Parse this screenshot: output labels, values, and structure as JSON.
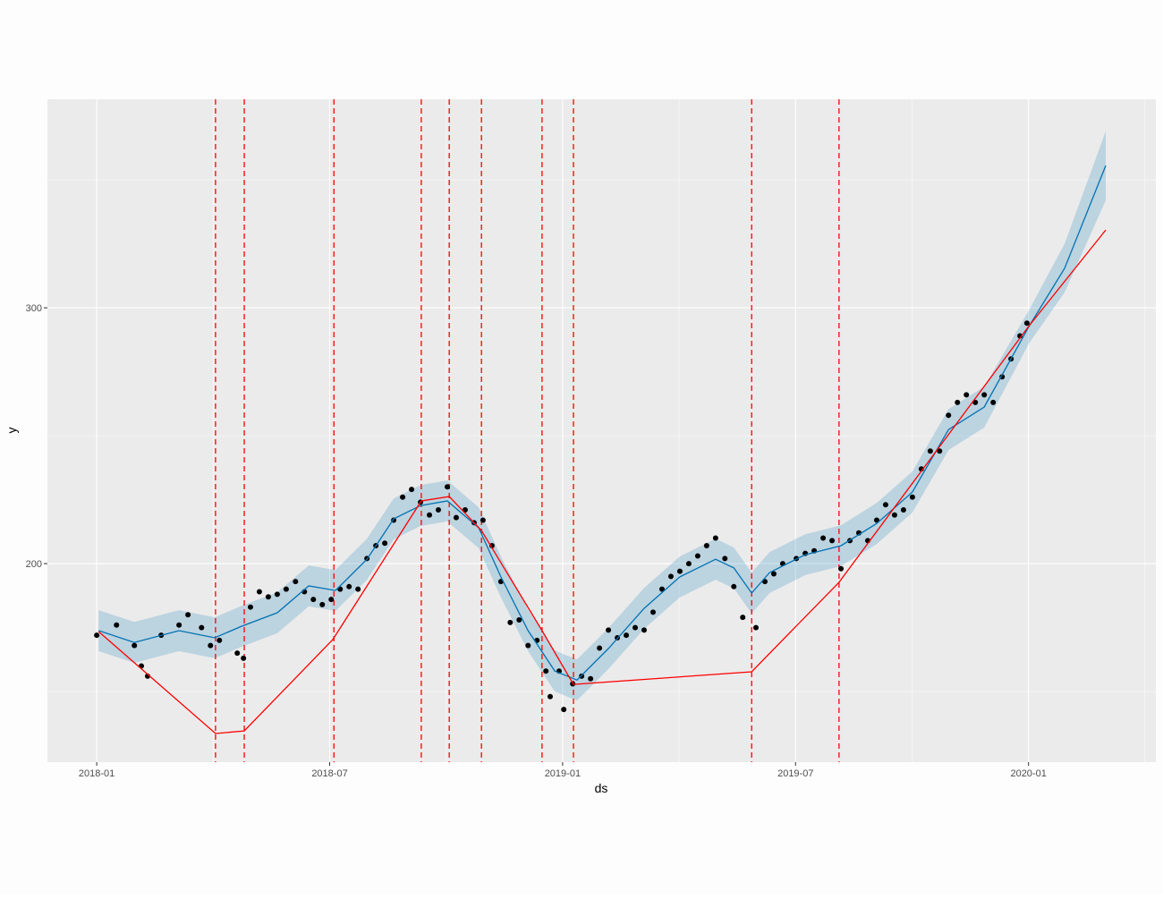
{
  "chart_data": {
    "type": "line",
    "x_label": "ds",
    "y_label": "y",
    "xlim": [
      -1.27,
      27.28
    ],
    "xticks": [
      {
        "value": 0,
        "label": "2018-01"
      },
      {
        "value": 6,
        "label": "2018-07"
      },
      {
        "value": 12,
        "label": "2019-01"
      },
      {
        "value": 18,
        "label": "2019-07"
      },
      {
        "value": 24,
        "label": "2020-01"
      }
    ],
    "x_minor_grid": [
      3,
      9,
      15,
      21,
      27
    ],
    "ylim": [
      122.4,
      381.5
    ],
    "yticks": [
      200,
      300
    ],
    "y_minor_grid": [
      150,
      250,
      350
    ],
    "grid": true,
    "forecast": {
      "color": "#0072B2",
      "x": [
        0.05,
        0.97,
        2.12,
        3.04,
        3.73,
        4.65,
        5.46,
        6.15,
        6.96,
        7.65,
        8.34,
        9.03,
        9.84,
        10.41,
        11.11,
        11.8,
        12.37,
        13.18,
        14.1,
        15.02,
        15.94,
        16.41,
        16.87,
        17.33,
        18.25,
        19.17,
        20.09,
        21.01,
        21.94,
        22.86,
        24.01,
        24.93,
        25.99
      ],
      "values": [
        173.8,
        169.2,
        173.8,
        171.0,
        175.5,
        180.8,
        191.3,
        189.5,
        201.7,
        217.5,
        222.7,
        224.5,
        214.0,
        194.8,
        173.8,
        158.0,
        154.5,
        166.8,
        182.5,
        194.8,
        201.7,
        198.3,
        188.5,
        196.5,
        203.5,
        207.0,
        215.7,
        228.0,
        252.4,
        261.2,
        292.7,
        315.4,
        355.6
      ],
      "lower": [
        165.8,
        161.2,
        165.8,
        163,
        167.5,
        172.8,
        183.3,
        181.5,
        193.7,
        209.5,
        214.7,
        216.5,
        206,
        186.8,
        165.8,
        150,
        146.5,
        158.8,
        174.5,
        186.8,
        193.7,
        190.3,
        180.5,
        188.5,
        195.5,
        199,
        207.7,
        220,
        244.4,
        253.2,
        286,
        306,
        342
      ],
      "upper": [
        181.8,
        177.2,
        181.8,
        179,
        183.5,
        188.8,
        199.3,
        197.5,
        209.7,
        225.5,
        230.7,
        232.5,
        222,
        202.8,
        181.8,
        166,
        162.5,
        174.8,
        190.5,
        202.8,
        209.7,
        206.3,
        196.5,
        204.5,
        211.5,
        215,
        223.7,
        236,
        260.4,
        269.2,
        299,
        325,
        369
      ]
    },
    "trend": {
      "color": "#FF0000",
      "x": [
        0.05,
        3.06,
        3.8,
        6.08,
        8.36,
        9.08,
        9.91,
        11.47,
        12.28,
        16.87,
        19.12,
        24.0,
        25.99
      ],
      "values": [
        173.4,
        133.6,
        134.6,
        170.3,
        224.5,
        226.2,
        212.9,
        173.8,
        152.8,
        157.7,
        192.7,
        292.7,
        330.4
      ]
    },
    "changepoints": {
      "color": "#FF0000",
      "x": [
        3.06,
        3.8,
        6.11,
        8.36,
        9.08,
        9.91,
        11.47,
        12.28,
        16.87,
        19.12
      ]
    },
    "observed": {
      "color": "#000000",
      "x": [
        0.0,
        0.51,
        0.97,
        1.15,
        1.31,
        1.66,
        2.12,
        2.35,
        2.7,
        2.93,
        3.16,
        3.62,
        3.78,
        3.96,
        4.19,
        4.42,
        4.65,
        4.88,
        5.12,
        5.35,
        5.58,
        5.81,
        6.04,
        6.27,
        6.5,
        6.73,
        6.96,
        7.19,
        7.42,
        7.65,
        7.88,
        8.11,
        8.34,
        8.57,
        8.8,
        9.03,
        9.26,
        9.49,
        9.72,
        9.95,
        10.18,
        10.41,
        10.65,
        10.88,
        11.11,
        11.34,
        11.57,
        11.68,
        11.91,
        12.03,
        12.26,
        12.49,
        12.72,
        12.95,
        13.18,
        13.41,
        13.64,
        13.87,
        14.1,
        14.33,
        14.56,
        14.79,
        15.02,
        15.25,
        15.48,
        15.71,
        15.94,
        16.18,
        16.41,
        16.64,
        16.98,
        17.21,
        17.44,
        17.67,
        18.02,
        18.25,
        18.48,
        18.71,
        18.94,
        19.17,
        19.4,
        19.63,
        19.86,
        20.09,
        20.32,
        20.55,
        20.78,
        21.01,
        21.24,
        21.47,
        21.71,
        21.94,
        22.17,
        22.4,
        22.63,
        22.86,
        23.09,
        23.32,
        23.55,
        23.78,
        23.96
      ],
      "values": [
        172,
        176,
        168,
        160,
        156,
        172,
        176,
        180,
        175,
        168,
        170,
        165,
        163,
        183,
        189,
        187,
        188,
        190,
        193,
        189,
        186,
        184,
        186,
        190,
        191,
        190,
        202,
        207,
        208,
        217,
        226,
        229,
        224,
        219,
        221,
        230,
        218,
        221,
        216,
        217,
        207,
        193,
        177,
        178,
        168,
        170,
        158,
        148,
        158,
        143,
        153,
        156,
        155,
        167,
        174,
        171,
        172,
        175,
        174,
        181,
        190,
        195,
        197,
        200,
        203,
        207,
        210,
        202,
        191,
        179,
        175,
        193,
        196,
        200,
        202,
        204,
        205,
        210,
        209,
        198,
        209,
        212,
        209,
        217,
        223,
        219,
        221,
        226,
        237,
        244,
        244,
        258,
        263,
        266,
        263,
        266,
        263,
        273,
        280,
        289,
        294
      ]
    }
  }
}
